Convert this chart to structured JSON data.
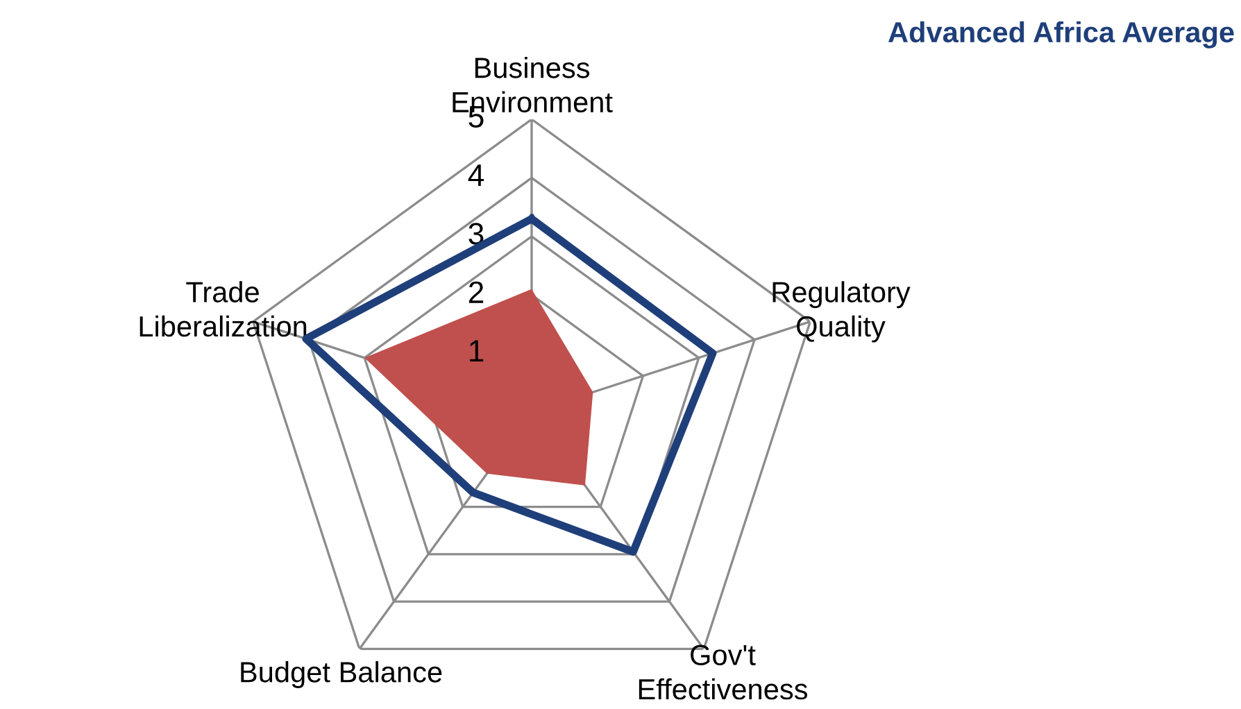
{
  "chart_data": {
    "type": "radar",
    "categories": [
      "Business Environment",
      "Regulatory Quality",
      "Gov't Effectiveness",
      "Budget Balance",
      "Trade Liberalization"
    ],
    "series": [
      {
        "type": "area",
        "color": "#c0504d",
        "values": [
          2.1,
          1.1,
          1.55,
          1.3,
          3.0
        ]
      },
      {
        "name": "Advanced Africa Average",
        "color": "#1f3f7a",
        "values": [
          3.3,
          3.25,
          2.95,
          1.7,
          4.05
        ]
      }
    ],
    "ylim": [
      0,
      5
    ],
    "yticks": [
      1,
      2,
      3,
      4,
      5
    ],
    "grid": true
  }
}
